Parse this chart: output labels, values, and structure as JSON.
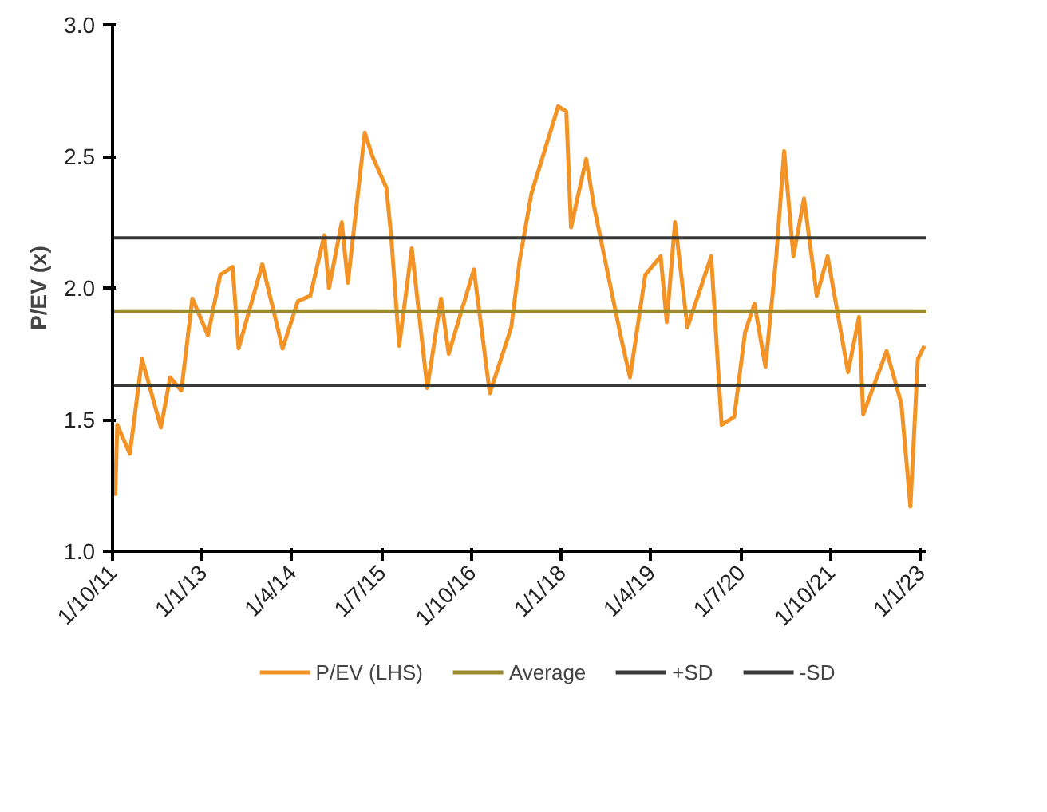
{
  "chart_data": {
    "type": "line",
    "ylabel": "P/EV (x)",
    "x": [
      "2011-10-15",
      "2011-10-25",
      "2011-12-28",
      "2012-02-28",
      "2012-06-03",
      "2012-07-20",
      "2012-09-15",
      "2012-11-10",
      "2013-01-28",
      "2013-04-01",
      "2013-06-03",
      "2013-07-03",
      "2013-11-01",
      "2014-02-12",
      "2014-05-01",
      "2014-07-03",
      "2014-09-12",
      "2014-10-06",
      "2014-12-10",
      "2015-01-10",
      "2015-04-06",
      "2015-05-15",
      "2015-07-25",
      "2015-08-18",
      "2015-09-28",
      "2015-12-01",
      "2016-02-18",
      "2016-04-28",
      "2016-06-06",
      "2016-10-12",
      "2017-01-01",
      "2017-04-20",
      "2017-06-01",
      "2017-08-01",
      "2017-12-15",
      "2018-01-25",
      "2018-02-18",
      "2018-05-06",
      "2018-06-15",
      "2018-10-28",
      "2018-12-15",
      "2019-03-03",
      "2019-05-20",
      "2019-06-20",
      "2019-08-01",
      "2019-10-03",
      "2020-02-01",
      "2020-03-25",
      "2020-05-28",
      "2020-07-22",
      "2020-09-08",
      "2020-11-03",
      "2020-12-28",
      "2021-02-06",
      "2021-03-25",
      "2021-05-18",
      "2021-07-22",
      "2021-09-15",
      "2021-12-28",
      "2022-02-22",
      "2022-03-15",
      "2022-07-12",
      "2022-09-25",
      "2022-11-10",
      "2022-12-18",
      "2023-01-20"
    ],
    "series": [
      {
        "name": "P/EV (LHS)",
        "color": "#f39325",
        "values": [
          1.21,
          1.48,
          1.37,
          1.73,
          1.47,
          1.66,
          1.61,
          1.96,
          1.82,
          2.05,
          2.08,
          1.77,
          2.09,
          1.77,
          1.95,
          1.97,
          2.2,
          2.0,
          2.25,
          2.02,
          2.59,
          2.5,
          2.38,
          2.2,
          1.78,
          2.15,
          1.62,
          1.96,
          1.75,
          2.07,
          1.6,
          1.85,
          2.1,
          2.36,
          2.69,
          2.67,
          2.23,
          2.49,
          2.31,
          1.82,
          1.66,
          2.05,
          2.12,
          1.87,
          2.25,
          1.85,
          2.12,
          1.48,
          1.51,
          1.83,
          1.94,
          1.7,
          2.12,
          2.52,
          2.12,
          2.34,
          1.97,
          2.12,
          1.68,
          1.89,
          1.52,
          1.76,
          1.56,
          1.17,
          1.73,
          1.78
        ]
      }
    ],
    "ref_lines": [
      {
        "axis": "y",
        "value": 1.91,
        "label": "Average",
        "color": "#9c8a2e"
      },
      {
        "axis": "y",
        "value": 2.19,
        "label": "+SD",
        "color": "#3a3a3a"
      },
      {
        "axis": "y",
        "value": 1.63,
        "label": "-SD",
        "color": "#3a3a3a"
      }
    ],
    "xlim": [
      "2011-10-01",
      "2023-01-31"
    ],
    "xticks": [
      {
        "value": "2011-10-01",
        "label": "1/10/11"
      },
      {
        "value": "2013-01-01",
        "label": "1/1/13"
      },
      {
        "value": "2014-04-01",
        "label": "1/4/14"
      },
      {
        "value": "2015-07-01",
        "label": "1/7/15"
      },
      {
        "value": "2016-10-01",
        "label": "1/10/16"
      },
      {
        "value": "2018-01-01",
        "label": "1/1/18"
      },
      {
        "value": "2019-04-01",
        "label": "1/4/19"
      },
      {
        "value": "2020-07-01",
        "label": "1/7/20"
      },
      {
        "value": "2021-10-01",
        "label": "1/10/21"
      },
      {
        "value": "2023-01-01",
        "label": "1/1/23"
      }
    ],
    "ylim": [
      1.0,
      3.0
    ],
    "yticks": [
      {
        "value": 1.0,
        "label": "1.0"
      },
      {
        "value": 1.5,
        "label": "1.5"
      },
      {
        "value": 2.0,
        "label": "2.0"
      },
      {
        "value": 2.5,
        "label": "2.5"
      },
      {
        "value": 3.0,
        "label": "3.0"
      }
    ],
    "grid": false,
    "legend": "bottom",
    "marker": "none",
    "line_style": "solid"
  }
}
